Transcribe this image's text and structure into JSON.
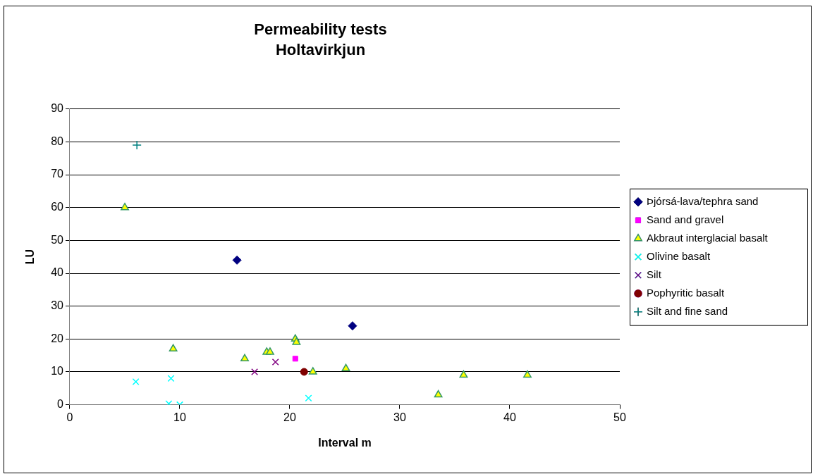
{
  "chart_data": {
    "type": "scatter",
    "title": "Permeability tests",
    "subtitle": "Holtavirkjun",
    "xlabel": "Interval m",
    "ylabel": "LU",
    "xlim": [
      0,
      50
    ],
    "xticks": [
      0,
      10,
      20,
      30,
      40,
      50
    ],
    "ylim": [
      0,
      90
    ],
    "yticks": [
      0,
      10,
      20,
      30,
      40,
      50,
      60,
      70,
      80,
      90
    ],
    "grid": "y",
    "legend": "right",
    "series": [
      {
        "name": "Þjórsá-lava/tephra sand",
        "color": "#000080",
        "marker": "diamond",
        "x": [
          15.2,
          25.7
        ],
        "values": [
          44,
          24
        ]
      },
      {
        "name": "Sand and gravel",
        "color": "#ff00ff",
        "marker": "square",
        "x": [
          20.5
        ],
        "values": [
          14
        ]
      },
      {
        "name": "Akbraut interglacial basalt",
        "color": "#ffff00",
        "marker": "triangle",
        "x": [
          5,
          9.4,
          15.9,
          17.9,
          18.2,
          20.5,
          20.6,
          22.1,
          25.1,
          33.5,
          35.8,
          41.6
        ],
        "values": [
          60,
          17,
          14,
          16,
          16,
          20,
          19,
          10,
          11,
          3,
          9,
          9
        ]
      },
      {
        "name": "Olivine basalt",
        "color": "#00ffff",
        "marker": "cross",
        "x": [
          6,
          9.2,
          9,
          10,
          21.7
        ],
        "values": [
          7,
          8,
          0.3,
          0,
          2
        ]
      },
      {
        "name": "Silt",
        "color": "#800080",
        "marker": "cross",
        "x": [
          16.8,
          18.7
        ],
        "values": [
          10,
          13
        ]
      },
      {
        "name": "Pophyritic basalt",
        "color": "#800000",
        "marker": "circle",
        "x": [
          21.3
        ],
        "values": [
          10
        ]
      },
      {
        "name": "Silt and fine sand",
        "color": "#008080",
        "marker": "plus",
        "x": [
          6.1
        ],
        "values": [
          79
        ]
      }
    ]
  }
}
